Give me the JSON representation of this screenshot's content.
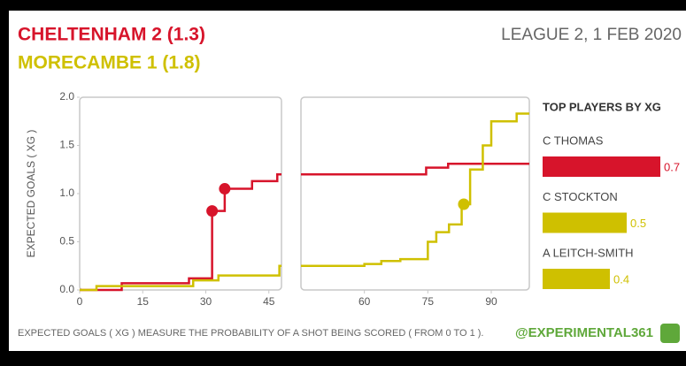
{
  "header": {
    "match": "LEAGUE 2, 1 FEB 2020"
  },
  "footer": {
    "note": "EXPECTED GOALS ( XG ) MEASURE THE PROBABILITY OF A SHOT BEING SCORED ( FROM 0 TO 1 ).",
    "handle": "@EXPERIMENTAL361"
  },
  "chart_data": [
    {
      "type": "step",
      "y_label": "EXPECTED GOALS ( XG )",
      "xlim": [
        0,
        48
      ],
      "xticks": [
        0,
        15,
        30,
        45
      ],
      "ylim": [
        0,
        2
      ],
      "yticks": [
        {
          "value": 0,
          "label": "0.0"
        },
        {
          "value": 0.5,
          "label": "0.5"
        },
        {
          "value": 1,
          "label": "1.0"
        },
        {
          "value": 1.5,
          "label": "1.5"
        },
        {
          "value": 2,
          "label": "2.0"
        }
      ],
      "series": [
        {
          "name": "CHELTENHAM 2 (1.3)",
          "color": "#d7142b",
          "x": [
            0,
            10,
            26,
            31.5,
            34.5,
            41,
            47
          ],
          "values": [
            0,
            0.07,
            0.12,
            0.82,
            1.05,
            1.13,
            1.2
          ],
          "goals": {
            "x": [
              31.5,
              34.5
            ],
            "values": [
              0.82,
              1.05
            ]
          }
        },
        {
          "name": "MORECAMBE 1 (1.8)",
          "color": "#cfc000",
          "x": [
            0,
            4,
            27,
            33,
            47.5
          ],
          "values": [
            0,
            0.04,
            0.1,
            0.15,
            0.25
          ],
          "goals": {
            "x": [],
            "values": []
          }
        }
      ]
    },
    {
      "type": "step",
      "xlim": [
        45,
        99
      ],
      "xticks": [
        60,
        75,
        90
      ],
      "ylim": [
        0,
        2
      ],
      "series": [
        {
          "color": "#d7142b",
          "x": [
            45,
            74.6,
            79.8
          ],
          "values": [
            1.2,
            1.27,
            1.31
          ],
          "goals": {
            "x": [],
            "values": []
          }
        },
        {
          "color": "#cfc000",
          "x": [
            45,
            60,
            64,
            68.5,
            75,
            77,
            80,
            83,
            85,
            88,
            90,
            96
          ],
          "values": [
            0.25,
            0.27,
            0.3,
            0.32,
            0.5,
            0.6,
            0.68,
            0.89,
            1.25,
            1.5,
            1.75,
            1.83
          ],
          "goals": {
            "x": [
              83.5
            ],
            "values": [
              0.89
            ]
          }
        }
      ]
    },
    {
      "type": "bar",
      "title": "TOP PLAYERS BY XG",
      "categories": [
        "C THOMAS",
        "C STOCKTON",
        "A LEITCH-SMITH"
      ],
      "values": [
        0.7,
        0.5,
        0.4
      ],
      "colors": [
        "#d7142b",
        "#cfc000",
        "#cfc000"
      ]
    }
  ]
}
